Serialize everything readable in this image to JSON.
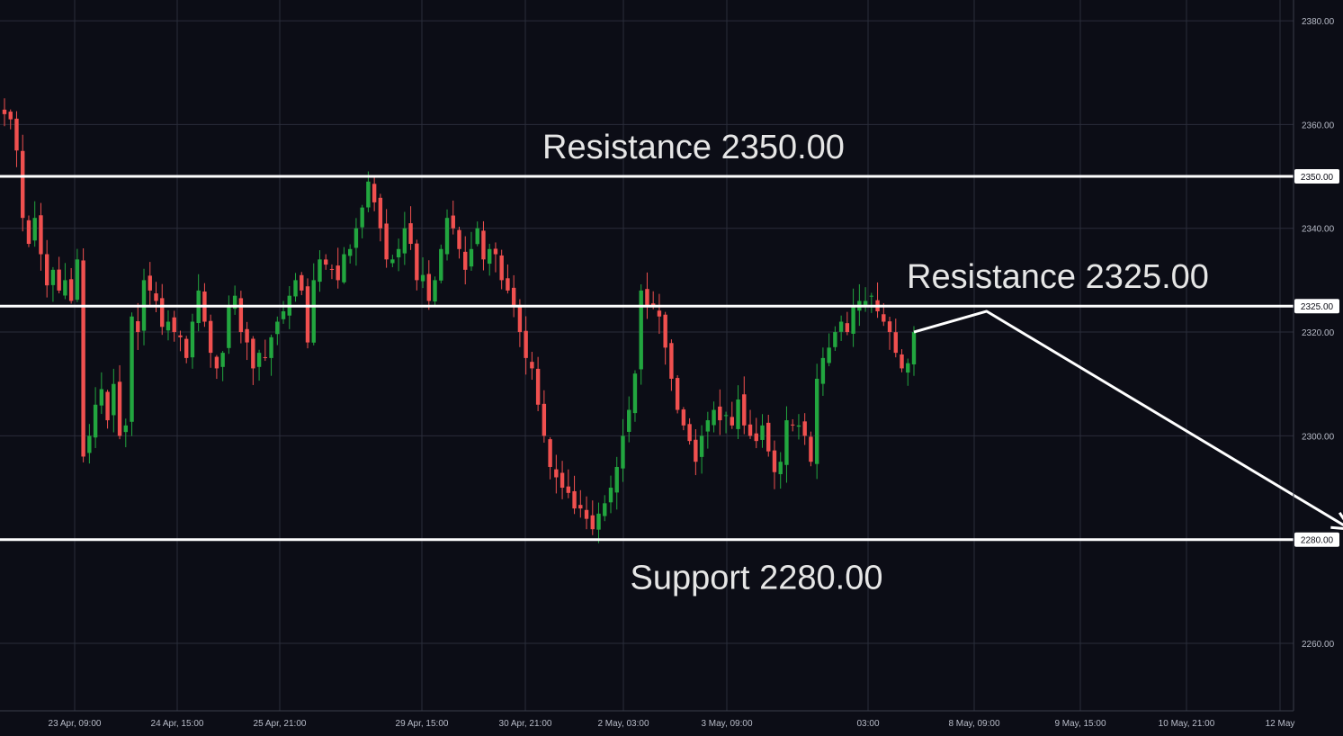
{
  "chart_data": {
    "type": "candlestick",
    "y_range": [
      2247,
      2384
    ],
    "y_ticks": [
      "2380.00",
      "2360.00",
      "2340.00",
      "2320.00",
      "2300.00",
      "2280.00",
      "2260.00"
    ],
    "y_tick_values": [
      2380,
      2360,
      2340,
      2320,
      2300,
      2280,
      2260
    ],
    "x_ticks": [
      "23 Apr, 09:00",
      "24 Apr, 15:00",
      "25 Apr, 21:00",
      "29 Apr, 15:00",
      "30 Apr, 21:00",
      "2 May, 03:00",
      "3 May, 09:00",
      "03:00",
      "8 May, 09:00",
      "9 May, 15:00",
      "10 May, 21:00",
      "12 May"
    ],
    "colors": {
      "up": "#22a63f",
      "down": "#f0504f",
      "level": "#ffffff",
      "grid": "#2a2d3a",
      "background": "#0c0d16"
    },
    "levels": [
      {
        "value": 2350,
        "tag": "2350.00",
        "label": "Resistance 2350.00"
      },
      {
        "value": 2325,
        "tag": "2325.00",
        "label": "Resistance 2325.00"
      },
      {
        "value": 2280,
        "tag": "2280.00",
        "label": "Support 2280.00"
      }
    ],
    "projection": [
      {
        "bar": 0,
        "price": 2320
      },
      {
        "bar": 12,
        "price": 2324
      },
      {
        "bar": 72,
        "price": 2282
      }
    ],
    "closes": [
      2362,
      2361,
      2355,
      2342,
      2337,
      2342,
      2335,
      2329,
      2332,
      2328,
      2330,
      2326,
      2334,
      2296,
      2300,
      2306,
      2309,
      2303,
      2310,
      2300,
      2302,
      2323,
      2320,
      2330,
      2328,
      2326,
      2321,
      2322,
      2320,
      2319,
      2315,
      2322,
      2328,
      2322,
      2316,
      2313,
      2316,
      2325,
      2327,
      2320,
      2318,
      2313,
      2316,
      2315,
      2319,
      2322,
      2324,
      2327,
      2330,
      2328,
      2318,
      2330,
      2334,
      2333,
      2332,
      2330,
      2335,
      2336,
      2340,
      2344,
      2349,
      2345,
      2340,
      2334,
      2334,
      2336,
      2340,
      2337,
      2330,
      2331,
      2326,
      2330,
      2336,
      2342,
      2340,
      2336,
      2332,
      2336,
      2340,
      2334,
      2336,
      2335,
      2330,
      2328,
      2325,
      2320,
      2315,
      2313,
      2306,
      2300,
      2294,
      2292,
      2290,
      2289,
      2286,
      2286,
      2284,
      2282,
      2285,
      2287,
      2290,
      2294,
      2300,
      2305,
      2312,
      2328,
      2325,
      2325,
      2323,
      2317,
      2311,
      2305,
      2302,
      2299,
      2295,
      2300,
      2303,
      2305,
      2303,
      2304,
      2302,
      2307,
      2302,
      2300,
      2299,
      2302,
      2297,
      2293,
      2295,
      2303,
      2302,
      2302,
      2300,
      2295,
      2311,
      2315,
      2317,
      2320,
      2322,
      2320,
      2325,
      2326,
      2326,
      2327,
      2324,
      2322,
      2320,
      2316,
      2313,
      2314,
      2320
    ]
  }
}
